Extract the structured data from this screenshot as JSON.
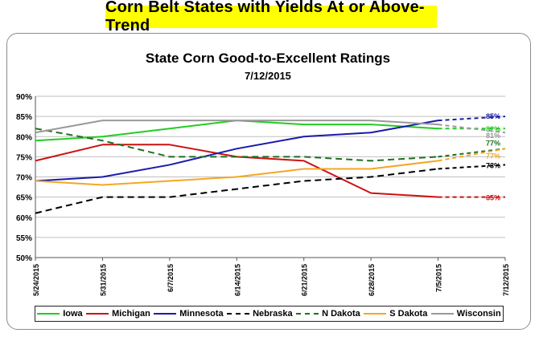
{
  "banner": {
    "text": "Corn Belt States with Yields At or Above-Trend",
    "color": "#ffff00"
  },
  "chart_data": {
    "type": "line",
    "title": "State Corn Good-to-Excellent Ratings",
    "subtitle": "7/12/2015",
    "xlabel": "",
    "ylabel": "",
    "categories": [
      "5/24/2015",
      "5/31/2015",
      "6/7/2015",
      "6/14/2015",
      "6/21/2015",
      "6/28/2015",
      "7/5/2015",
      "7/12/2015"
    ],
    "y_tick_labels": [
      "50%",
      "55%",
      "60%",
      "65%",
      "70%",
      "75%",
      "80%",
      "85%",
      "90%"
    ],
    "ylim": [
      50,
      90
    ],
    "grid": true,
    "legend_position": "bottom",
    "series": [
      {
        "name": "Iowa",
        "color": "#22cc22",
        "dash": "solid",
        "values": [
          79,
          80,
          82,
          84,
          83,
          83,
          82,
          82
        ],
        "end_label": "82%"
      },
      {
        "name": "Michigan",
        "color": "#cc1111",
        "dash": "solid",
        "values": [
          74,
          78,
          78,
          75,
          74,
          66,
          65,
          65
        ],
        "end_label": "65%"
      },
      {
        "name": "Minnesota",
        "color": "#1a1aaa",
        "dash": "solid",
        "values": [
          69,
          70,
          73,
          77,
          80,
          81,
          84,
          85
        ],
        "end_label": "85%"
      },
      {
        "name": "Nebraska",
        "color": "#000000",
        "dash": "dashed",
        "values": [
          61,
          65,
          65,
          67,
          69,
          70,
          72,
          73
        ],
        "end_label": "73%"
      },
      {
        "name": "N Dakota",
        "color": "#1f6f1f",
        "dash": "dashed",
        "values": [
          82,
          79,
          75,
          75,
          75,
          74,
          75,
          77
        ],
        "end_label": "77%"
      },
      {
        "name": "S Dakota",
        "color": "#f5a623",
        "dash": "solid",
        "values": [
          69,
          68,
          69,
          70,
          72,
          72,
          74,
          77
        ],
        "end_label": "77%"
      },
      {
        "name": "Wisconsin",
        "color": "#999999",
        "dash": "solid",
        "values": [
          81,
          84,
          84,
          84,
          84,
          84,
          83,
          81
        ],
        "end_label": "81%"
      }
    ]
  }
}
